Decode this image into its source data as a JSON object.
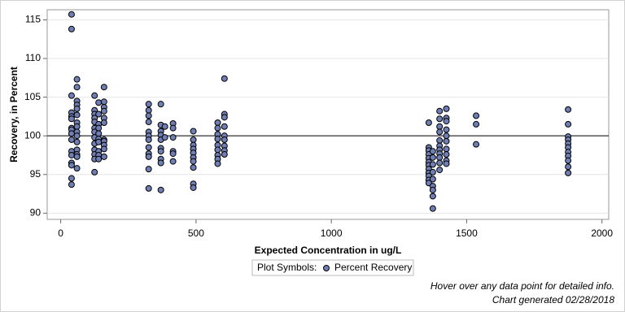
{
  "chart_data": {
    "type": "scatter",
    "xlabel": "Expected Concentration in ug/L",
    "ylabel": "Recovery, in Percent",
    "xlim": [
      -50,
      2025
    ],
    "ylim": [
      89.2,
      116.3
    ],
    "xticks": [
      0,
      500,
      1000,
      1500,
      2000
    ],
    "yticks": [
      90,
      95,
      100,
      105,
      110,
      115
    ],
    "grid": true,
    "reference_line": 100,
    "legend_title": "Plot Symbols:",
    "notes": [
      "Hover over any data point for detailed info.",
      "Chart generated 02/28/2018"
    ],
    "series": [
      {
        "name": "Percent Recovery",
        "color": "#6f7eb3",
        "x": [
          40,
          40,
          40,
          40,
          40,
          40,
          40,
          40,
          40,
          40,
          40,
          40,
          40,
          40,
          40,
          40,
          60,
          60,
          60,
          60,
          60,
          60,
          60,
          60,
          60,
          60,
          60,
          60,
          60,
          60,
          60,
          125,
          125,
          125,
          125,
          125,
          125,
          125,
          125,
          125,
          125,
          125,
          125,
          125,
          140,
          140,
          140,
          140,
          140,
          140,
          140,
          140,
          140,
          140,
          160,
          160,
          160,
          160,
          160,
          160,
          160,
          160,
          160,
          160,
          160,
          325,
          325,
          325,
          325,
          325,
          325,
          325,
          325,
          325,
          325,
          325,
          325,
          370,
          370,
          370,
          370,
          370,
          370,
          370,
          370,
          370,
          370,
          385,
          385,
          415,
          415,
          415,
          415,
          415,
          415,
          490,
          490,
          490,
          490,
          490,
          490,
          490,
          490,
          490,
          490,
          580,
          580,
          580,
          580,
          580,
          580,
          580,
          580,
          580,
          605,
          605,
          605,
          605,
          605,
          605,
          605,
          605,
          605,
          1360,
          1360,
          1360,
          1360,
          1360,
          1360,
          1360,
          1360,
          1360,
          1360,
          1360,
          1360,
          1375,
          1375,
          1375,
          1375,
          1375,
          1375,
          1375,
          1375,
          1375,
          1400,
          1400,
          1400,
          1400,
          1400,
          1400,
          1400,
          1400,
          1400,
          1400,
          1400,
          1425,
          1425,
          1425,
          1425,
          1425,
          1425,
          1425,
          1425,
          1425,
          1425,
          1535,
          1535,
          1535,
          1875,
          1875,
          1875,
          1875,
          1875,
          1875,
          1875,
          1875,
          1875,
          1875,
          1875
        ],
        "values": [
          115.7,
          113.8,
          105.2,
          103,
          102.5,
          102.2,
          101,
          100.8,
          100.3,
          99.5,
          98,
          97.5,
          96.5,
          96.2,
          94.5,
          93.7,
          107.3,
          106.3,
          104.5,
          104,
          103.5,
          102.7,
          101.7,
          101.2,
          100.5,
          100,
          99.2,
          98.2,
          97.6,
          97.3,
          95.8,
          105.2,
          103.3,
          102.8,
          102.3,
          101.8,
          101,
          100.5,
          99.8,
          99,
          98.2,
          97.6,
          97,
          95.3,
          104.3,
          102.8,
          101.5,
          101,
          100.3,
          99.6,
          99.2,
          98,
          97.5,
          97,
          106.3,
          104.4,
          103.7,
          103.2,
          102.3,
          101.7,
          99.5,
          99.3,
          98.8,
          98.3,
          97.3,
          104.1,
          103.3,
          102.6,
          101.8,
          100.5,
          100,
          99.5,
          98.5,
          97.7,
          97.3,
          95.7,
          93.2,
          104.1,
          101.4,
          100.6,
          100.1,
          99.5,
          98.4,
          98,
          97,
          96.5,
          93,
          101.2,
          99.8,
          101.6,
          101,
          99.8,
          98,
          97.7,
          96.7,
          100.6,
          99.5,
          98.8,
          98.3,
          97.8,
          97.2,
          96.7,
          95.9,
          93.8,
          93.3,
          101.7,
          101,
          100.2,
          99.6,
          98.8,
          98.2,
          97.5,
          97,
          96.4,
          107.4,
          102.8,
          102.4,
          101.2,
          100,
          99.5,
          98.7,
          98.1,
          97.6,
          101.7,
          98.5,
          98.1,
          97.6,
          97.1,
          96.6,
          96.2,
          95.7,
          95.2,
          94.8,
          94.3,
          93.9,
          98,
          97.2,
          96.3,
          95.3,
          94.4,
          93.5,
          93,
          92.2,
          90.6,
          103.2,
          102.2,
          101.2,
          100.5,
          99.4,
          98.7,
          98.2,
          97.7,
          97.2,
          96.5,
          95.6,
          103.5,
          102.3,
          101.9,
          100.8,
          100,
          99.3,
          98.3,
          97.6,
          96.8,
          96.4,
          102.6,
          101.5,
          98.9,
          103.4,
          101.5,
          99.9,
          99.5,
          99,
          98.5,
          97.9,
          97.4,
          96.8,
          96,
          95.2
        ]
      }
    ]
  }
}
